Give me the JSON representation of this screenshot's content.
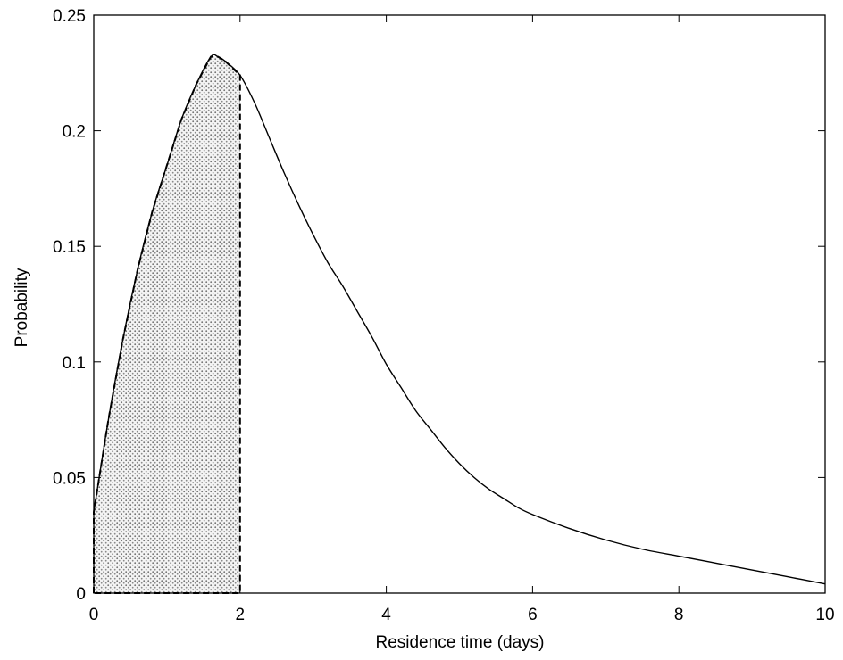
{
  "chart_data": {
    "type": "line",
    "title": "",
    "xlabel": "Residence time (days)",
    "ylabel": "Probability",
    "xlim": [
      0,
      10
    ],
    "ylim": [
      0,
      0.25
    ],
    "xticks": [
      0,
      2,
      4,
      6,
      8,
      10
    ],
    "xtick_labels": [
      "0",
      "2",
      "4",
      "6",
      "8",
      "10"
    ],
    "yticks": [
      0,
      0.05,
      0.1,
      0.15,
      0.2,
      0.25
    ],
    "ytick_labels": [
      "0",
      "0.05",
      "0.1",
      "0.15",
      "0.2",
      "0.25"
    ],
    "grid": false,
    "series": [
      {
        "x": [
          0,
          0.2,
          0.4,
          0.6,
          0.8,
          1.0,
          1.2,
          1.4,
          1.6,
          1.7,
          1.8,
          2.0,
          2.2,
          2.4,
          2.6,
          2.8,
          3.0,
          3.2,
          3.4,
          3.6,
          3.8,
          4.0,
          4.2,
          4.4,
          4.6,
          4.8,
          5.0,
          5.2,
          5.4,
          5.6,
          5.8,
          6.0,
          6.5,
          7.0,
          7.5,
          8.0,
          8.5,
          9.0,
          9.5,
          10.0
        ],
        "y": [
          0.035,
          0.075,
          0.11,
          0.14,
          0.165,
          0.185,
          0.205,
          0.22,
          0.232,
          0.232,
          0.23,
          0.224,
          0.212,
          0.197,
          0.182,
          0.168,
          0.155,
          0.143,
          0.133,
          0.122,
          0.111,
          0.099,
          0.089,
          0.079,
          0.071,
          0.063,
          0.056,
          0.05,
          0.045,
          0.041,
          0.037,
          0.034,
          0.028,
          0.023,
          0.019,
          0.016,
          0.013,
          0.01,
          0.007,
          0.004
        ]
      }
    ],
    "shaded_region": {
      "x_start": 0,
      "x_end": 2,
      "pattern": "stipple",
      "border": "dashed"
    },
    "colors": {
      "line": "#000000",
      "shade": "#bdbdbd",
      "background": "#ffffff"
    }
  }
}
